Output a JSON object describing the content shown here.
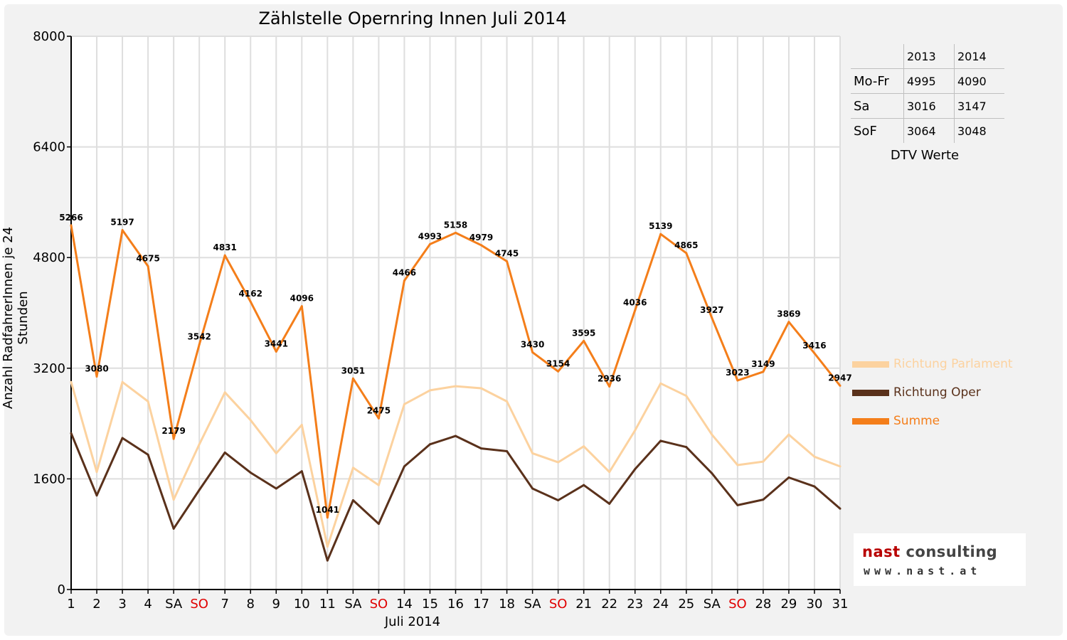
{
  "chart_data": {
    "type": "line",
    "title": "Zählstelle Opernring Innen Juli 2014",
    "xlabel": "Juli 2014",
    "ylabel": "Anzahl RadfahrerInnen je 24 Stunden",
    "ylim": [
      0,
      8000
    ],
    "yticks": [
      0,
      1600,
      3200,
      4800,
      6400,
      8000
    ],
    "grid": true,
    "legend_position": "right",
    "categories": [
      "1",
      "2",
      "3",
      "4",
      "SA",
      "SO",
      "7",
      "8",
      "9",
      "10",
      "11",
      "SA",
      "SO",
      "14",
      "15",
      "16",
      "17",
      "18",
      "SA",
      "SO",
      "21",
      "22",
      "23",
      "24",
      "25",
      "SA",
      "SO",
      "28",
      "29",
      "30",
      "31"
    ],
    "weekend_categories_red": [
      5,
      12,
      19,
      26
    ],
    "series": [
      {
        "name": "Richtung Parlament",
        "color": "#fcd29f",
        "values": [
          3000,
          1700,
          3000,
          2720,
          1300,
          2100,
          2850,
          2450,
          1970,
          2380,
          620,
          1760,
          1510,
          2680,
          2880,
          2940,
          2910,
          2720,
          1970,
          1840,
          2070,
          1700,
          2300,
          2980,
          2800,
          2240,
          1800,
          1850,
          2240,
          1920,
          1780
        ]
      },
      {
        "name": "Richtung Oper",
        "color": "#5a311b",
        "values": [
          2260,
          1360,
          2190,
          1950,
          880,
          1440,
          1980,
          1690,
          1460,
          1710,
          420,
          1290,
          950,
          1780,
          2100,
          2220,
          2040,
          2000,
          1460,
          1290,
          1510,
          1240,
          1740,
          2150,
          2060,
          1680,
          1220,
          1300,
          1620,
          1490,
          1170
        ]
      },
      {
        "name": "Summe",
        "color": "#f47e1a",
        "values": [
          5266,
          3080,
          5197,
          4675,
          2179,
          3542,
          4831,
          4162,
          3441,
          4096,
          1041,
          3051,
          2475,
          4466,
          4993,
          5158,
          4979,
          4745,
          3430,
          3154,
          3595,
          2936,
          4036,
          5139,
          4865,
          3927,
          3023,
          3149,
          3869,
          3416,
          2947
        ],
        "data_labels": true
      }
    ]
  },
  "dtv_table": {
    "caption": "DTV Werte",
    "years": [
      "2013",
      "2014"
    ],
    "rows": [
      {
        "label": "Mo-Fr",
        "v2013": "4995",
        "v2014": "4090"
      },
      {
        "label": "Sa",
        "v2013": "3016",
        "v2014": "3147"
      },
      {
        "label": "SoF",
        "v2013": "3064",
        "v2014": "3048"
      }
    ]
  },
  "logo": {
    "brand_part1": "nast",
    "brand_part2": " consulting",
    "url": "www.nast.at",
    "color_main": "#b80000"
  }
}
